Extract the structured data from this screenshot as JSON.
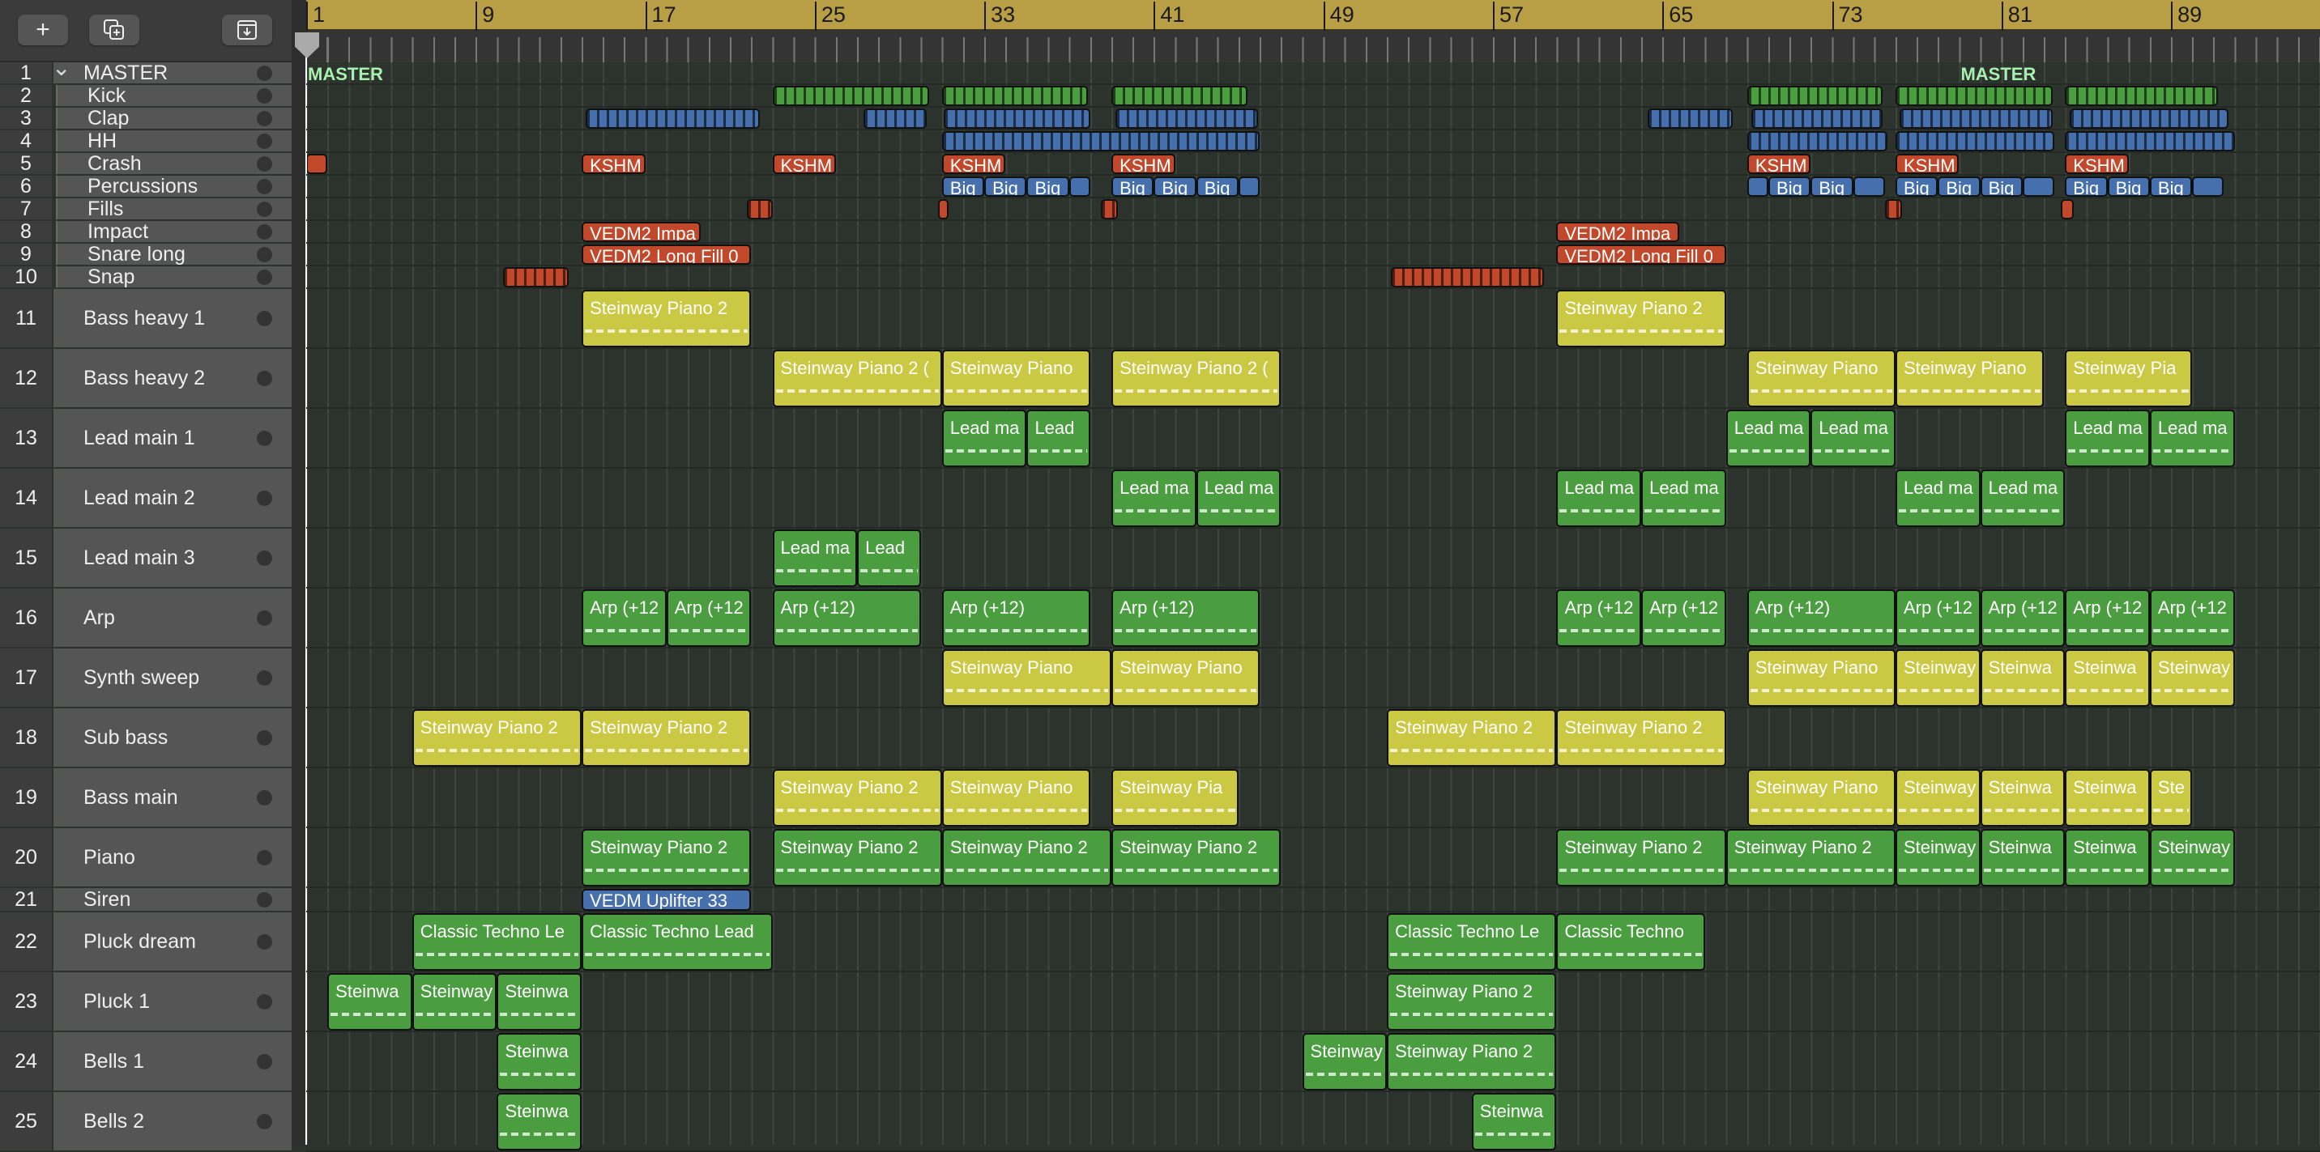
{
  "toolbar": {
    "add_label": "+",
    "add_icon": "plus-icon",
    "duplicate_icon": "duplicate-track-icon",
    "download_icon": "download-icon"
  },
  "colors": {
    "ruler": "#b89e45",
    "yellow": "#cbc843",
    "green": "#4a9e40",
    "blue": "#4670ad",
    "red": "#c1482a",
    "master_text": "#a9f0b0"
  },
  "ruler": {
    "labels": [
      "1",
      "9",
      "17",
      "25",
      "33",
      "41",
      "49",
      "57",
      "65",
      "73",
      "81",
      "89"
    ]
  },
  "master_markers": [
    {
      "bar": 1,
      "label": "MASTER"
    },
    {
      "bar": 79,
      "label": "MASTER"
    }
  ],
  "tracks": [
    {
      "num": "1",
      "name": "MASTER",
      "folder": true,
      "clips": []
    },
    {
      "num": "2",
      "name": "Kick",
      "clips": [
        [
          23,
          30.4,
          "",
          "green",
          "seg"
        ],
        [
          31,
          37.9,
          "",
          "green",
          "seg"
        ],
        [
          39,
          45.4,
          "",
          "green",
          "seg"
        ],
        [
          69,
          75.4,
          "",
          "green",
          "seg"
        ],
        [
          76,
          83.4,
          "",
          "green",
          "seg"
        ],
        [
          84,
          91.2,
          "",
          "green",
          "seg"
        ]
      ]
    },
    {
      "num": "3",
      "name": "Clap",
      "clips": [
        [
          14.2,
          22.4,
          "",
          "blue",
          "seg"
        ],
        [
          27.3,
          30.3,
          "",
          "blue",
          "seg"
        ],
        [
          31.1,
          38,
          "",
          "blue",
          "seg"
        ],
        [
          39.2,
          45.9,
          "",
          "blue",
          "seg"
        ],
        [
          64.3,
          68.3,
          "",
          "blue",
          "seg"
        ],
        [
          69.2,
          75.4,
          "",
          "blue",
          "seg"
        ],
        [
          76.2,
          83.4,
          "",
          "blue",
          "seg"
        ],
        [
          84.2,
          91.7,
          "",
          "blue",
          "seg"
        ]
      ]
    },
    {
      "num": "4",
      "name": "HH",
      "clips": [
        [
          31,
          46,
          "",
          "blue",
          "seg"
        ],
        [
          69,
          75.6,
          "",
          "blue",
          "seg"
        ],
        [
          76,
          83.5,
          "",
          "blue",
          "seg"
        ],
        [
          84,
          92,
          "",
          "blue",
          "seg"
        ]
      ]
    },
    {
      "num": "5",
      "name": "Crash",
      "clips": [
        [
          1,
          2,
          "",
          "red",
          ""
        ],
        [
          14,
          17,
          "KSHM",
          "red",
          ""
        ],
        [
          23,
          26,
          "KSHM",
          "red",
          ""
        ],
        [
          31,
          34,
          "KSHM",
          "red",
          ""
        ],
        [
          39,
          42,
          "KSHM",
          "red",
          ""
        ],
        [
          69,
          72,
          "KSHM",
          "red",
          ""
        ],
        [
          76,
          79,
          "KSHM",
          "red",
          ""
        ],
        [
          84,
          87,
          "KSHM",
          "red",
          ""
        ]
      ]
    },
    {
      "num": "6",
      "name": "Percussions",
      "clips": [
        [
          31,
          33,
          "Big",
          "blue",
          ""
        ],
        [
          33,
          35,
          "Big",
          "blue",
          ""
        ],
        [
          35,
          37,
          "Big",
          "blue",
          ""
        ],
        [
          37,
          38,
          "",
          "blue",
          ""
        ],
        [
          39,
          41,
          "Big",
          "blue",
          ""
        ],
        [
          41,
          43,
          "Big",
          "blue",
          ""
        ],
        [
          43,
          45,
          "Big",
          "blue",
          ""
        ],
        [
          45,
          46,
          "",
          "blue",
          ""
        ],
        [
          69,
          70,
          "",
          "blue",
          ""
        ],
        [
          70,
          72,
          "Big",
          "blue",
          ""
        ],
        [
          72,
          74,
          "Big",
          "blue",
          ""
        ],
        [
          74,
          75.5,
          "",
          "blue",
          ""
        ],
        [
          76,
          78,
          "Big",
          "blue",
          ""
        ],
        [
          78,
          80,
          "Big",
          "blue",
          ""
        ],
        [
          80,
          82,
          "Big",
          "blue",
          ""
        ],
        [
          82,
          83.5,
          "",
          "blue",
          ""
        ],
        [
          84,
          86,
          "Big",
          "blue",
          ""
        ],
        [
          86,
          88,
          "Big",
          "blue",
          ""
        ],
        [
          88,
          90,
          "Big",
          "blue",
          ""
        ],
        [
          90,
          91.5,
          "",
          "blue",
          ""
        ]
      ]
    },
    {
      "num": "7",
      "name": "Fills",
      "clips": [
        [
          21.8,
          23,
          "",
          "red",
          "seg"
        ],
        [
          30.8,
          31.3,
          "",
          "red",
          ""
        ],
        [
          38.5,
          39.3,
          "",
          "red",
          "seg"
        ],
        [
          75.5,
          76.3,
          "",
          "red",
          "seg"
        ],
        [
          83.8,
          84.4,
          "",
          "red",
          ""
        ]
      ]
    },
    {
      "num": "8",
      "name": "Impact",
      "clips": [
        [
          14,
          19.6,
          "VEDM2 Impa",
          "red",
          ""
        ],
        [
          60,
          65.8,
          "VEDM2 Impa",
          "red",
          ""
        ]
      ]
    },
    {
      "num": "9",
      "name": "Snare long",
      "clips": [
        [
          14,
          22,
          "VEDM2 Long Fill 0",
          "red",
          ""
        ],
        [
          60,
          68,
          "VEDM2 Long Fill 0",
          "red",
          ""
        ]
      ]
    },
    {
      "num": "10",
      "name": "Snap",
      "clips": [
        [
          10.3,
          13.4,
          "",
          "red",
          "seg"
        ],
        [
          52.2,
          59.4,
          "",
          "red",
          "seg"
        ]
      ]
    },
    {
      "num": "11",
      "name": "Bass heavy 1",
      "clips": [
        [
          14,
          22,
          "Steinway Piano 2",
          "yellow",
          "notes"
        ],
        [
          60,
          68,
          "Steinway Piano 2",
          "yellow",
          "notes"
        ]
      ]
    },
    {
      "num": "12",
      "name": "Bass heavy 2",
      "clips": [
        [
          23,
          31,
          "Steinway Piano 2 (",
          "yellow",
          "notes"
        ],
        [
          31,
          38,
          "Steinway Piano",
          "yellow",
          "notes"
        ],
        [
          39,
          47,
          "Steinway Piano 2 (",
          "yellow",
          "notes"
        ],
        [
          69,
          76,
          "Steinway Piano",
          "yellow",
          "notes"
        ],
        [
          76,
          83,
          "Steinway Piano",
          "yellow",
          "notes"
        ],
        [
          84,
          90,
          "Steinway Pia",
          "yellow",
          "notes"
        ]
      ]
    },
    {
      "num": "13",
      "name": "Lead main 1",
      "clips": [
        [
          31,
          35,
          "Lead ma",
          "green",
          "notes"
        ],
        [
          35,
          38,
          "Lead",
          "green",
          "notes"
        ],
        [
          68,
          72,
          "Lead ma",
          "green",
          "notes"
        ],
        [
          72,
          76,
          "Lead ma",
          "green",
          "notes"
        ],
        [
          84,
          88,
          "Lead ma",
          "green",
          "notes"
        ],
        [
          88,
          92,
          "Lead ma",
          "green",
          "notes"
        ]
      ]
    },
    {
      "num": "14",
      "name": "Lead main 2",
      "clips": [
        [
          39,
          43,
          "Lead ma",
          "green",
          "notes"
        ],
        [
          43,
          47,
          "Lead ma",
          "green",
          "notes"
        ],
        [
          60,
          64,
          "Lead ma",
          "green",
          "notes"
        ],
        [
          64,
          68,
          "Lead ma",
          "green",
          "notes"
        ],
        [
          76,
          80,
          "Lead ma",
          "green",
          "notes"
        ],
        [
          80,
          84,
          "Lead ma",
          "green",
          "notes"
        ]
      ]
    },
    {
      "num": "15",
      "name": "Lead main 3",
      "clips": [
        [
          23,
          27,
          "Lead ma",
          "green",
          "notes"
        ],
        [
          27,
          30,
          "Lead",
          "green",
          "notes"
        ]
      ]
    },
    {
      "num": "16",
      "name": "Arp",
      "clips": [
        [
          14,
          18,
          "Arp (+12",
          "green",
          "notes"
        ],
        [
          18,
          22,
          "Arp (+12",
          "green",
          "notes"
        ],
        [
          23,
          30,
          "Arp (+12)",
          "green",
          "notes"
        ],
        [
          31,
          38,
          "Arp (+12)",
          "green",
          "notes"
        ],
        [
          39,
          46,
          "Arp (+12)",
          "green",
          "notes"
        ],
        [
          60,
          64,
          "Arp (+12",
          "green",
          "notes"
        ],
        [
          64,
          68,
          "Arp (+12",
          "green",
          "notes"
        ],
        [
          69,
          76,
          "Arp (+12)",
          "green",
          "notes"
        ],
        [
          76,
          80,
          "Arp (+12",
          "green",
          "notes"
        ],
        [
          80,
          84,
          "Arp (+12",
          "green",
          "notes"
        ],
        [
          84,
          88,
          "Arp (+12",
          "green",
          "notes"
        ],
        [
          88,
          92,
          "Arp (+12",
          "green",
          "notes"
        ]
      ]
    },
    {
      "num": "17",
      "name": "Synth sweep",
      "clips": [
        [
          31,
          39,
          "Steinway Piano",
          "yellow",
          "notes"
        ],
        [
          39,
          46,
          "Steinway Piano",
          "yellow",
          "notes"
        ],
        [
          69,
          76,
          "Steinway Piano",
          "yellow",
          "notes"
        ],
        [
          76,
          80,
          "Steinway",
          "yellow",
          "notes"
        ],
        [
          80,
          84,
          "Steinwa",
          "yellow",
          "notes"
        ],
        [
          84,
          88,
          "Steinwa",
          "yellow",
          "notes"
        ],
        [
          88,
          92,
          "Steinway",
          "yellow",
          "notes"
        ]
      ]
    },
    {
      "num": "18",
      "name": "Sub bass",
      "clips": [
        [
          6,
          14,
          "Steinway Piano 2",
          "yellow",
          "notes"
        ],
        [
          14,
          22,
          "Steinway Piano 2",
          "yellow",
          "notes"
        ],
        [
          52,
          60,
          "Steinway Piano 2",
          "yellow",
          "notes"
        ],
        [
          60,
          68,
          "Steinway Piano 2",
          "yellow",
          "notes"
        ]
      ]
    },
    {
      "num": "19",
      "name": "Bass main",
      "clips": [
        [
          23,
          31,
          "Steinway Piano 2",
          "yellow",
          "notes"
        ],
        [
          31,
          38,
          "Steinway Piano",
          "yellow",
          "notes"
        ],
        [
          39,
          45,
          "Steinway Pia",
          "yellow",
          "notes"
        ],
        [
          69,
          76,
          "Steinway Piano",
          "yellow",
          "notes"
        ],
        [
          76,
          80,
          "Steinway",
          "yellow",
          "notes"
        ],
        [
          80,
          84,
          "Steinwa",
          "yellow",
          "notes"
        ],
        [
          84,
          88,
          "Steinwa",
          "yellow",
          "notes"
        ],
        [
          88,
          90,
          "Ste",
          "yellow",
          "notes"
        ]
      ]
    },
    {
      "num": "20",
      "name": "Piano",
      "clips": [
        [
          14,
          22,
          "Steinway Piano 2",
          "green",
          "notes"
        ],
        [
          23,
          31,
          "Steinway Piano 2",
          "green",
          "notes"
        ],
        [
          31,
          39,
          "Steinway Piano 2",
          "green",
          "notes"
        ],
        [
          39,
          47,
          "Steinway Piano 2",
          "green",
          "notes"
        ],
        [
          60,
          68,
          "Steinway Piano 2",
          "green",
          "notes"
        ],
        [
          68,
          76,
          "Steinway Piano 2",
          "green",
          "notes"
        ],
        [
          76,
          80,
          "Steinway",
          "green",
          "notes"
        ],
        [
          80,
          84,
          "Steinwa",
          "green",
          "notes"
        ],
        [
          84,
          88,
          "Steinwa",
          "green",
          "notes"
        ],
        [
          88,
          92,
          "Steinway",
          "green",
          "notes"
        ]
      ]
    },
    {
      "num": "21",
      "name": "Siren",
      "clips": [
        [
          14,
          22,
          "VEDM Uplifter 33",
          "blue",
          ""
        ]
      ]
    },
    {
      "num": "22",
      "name": "Pluck dream",
      "clips": [
        [
          6,
          14,
          "Classic Techno Le",
          "green",
          "notes"
        ],
        [
          14,
          23,
          "Classic Techno Lead",
          "green",
          "notes"
        ],
        [
          52,
          60,
          "Classic Techno Le",
          "green",
          "notes"
        ],
        [
          60,
          67,
          "Classic Techno",
          "green",
          "notes"
        ]
      ]
    },
    {
      "num": "23",
      "name": "Pluck 1",
      "clips": [
        [
          2,
          6,
          "Steinwa",
          "green",
          "notes"
        ],
        [
          6,
          10,
          "Steinway",
          "green",
          "notes"
        ],
        [
          10,
          14,
          "Steinwa",
          "green",
          "notes"
        ],
        [
          52,
          60,
          "Steinway Piano 2",
          "green",
          "notes"
        ]
      ]
    },
    {
      "num": "24",
      "name": "Bells 1",
      "clips": [
        [
          10,
          14,
          "Steinwa",
          "green",
          "notes"
        ],
        [
          48,
          52,
          "Steinway",
          "green",
          "notes"
        ],
        [
          52,
          60,
          "Steinway Piano 2",
          "green",
          "notes"
        ]
      ]
    },
    {
      "num": "25",
      "name": "Bells 2",
      "clips": [
        [
          10,
          14,
          "Steinwa",
          "green",
          "notes"
        ],
        [
          56,
          60,
          "Steinwa",
          "green",
          "notes"
        ]
      ]
    }
  ]
}
